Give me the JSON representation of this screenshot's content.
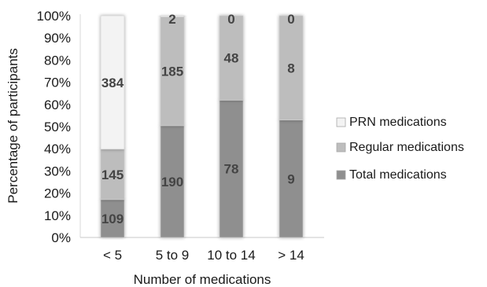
{
  "chart_data": {
    "type": "bar",
    "stacked": true,
    "normalized": true,
    "categories": [
      "< 5",
      "5 to 9",
      "10 to 14",
      "> 14"
    ],
    "series": [
      {
        "name": "Total medications",
        "values": [
          109,
          190,
          78,
          9
        ],
        "color": "#8f8f8f"
      },
      {
        "name": "Regular medications",
        "values": [
          145,
          185,
          48,
          8
        ],
        "color": "#bdbdbd"
      },
      {
        "name": "PRN medications",
        "values": [
          384,
          2,
          0,
          0
        ],
        "color": "#f3f3f3"
      }
    ],
    "xlabel": "Number of medications",
    "ylabel": "Percentage of participants",
    "y_ticks": [
      "0%",
      "10%",
      "20%",
      "30%",
      "40%",
      "50%",
      "60%",
      "70%",
      "80%",
      "90%",
      "100%"
    ],
    "ylim": [
      0,
      100
    ],
    "legend": {
      "placement": "right",
      "order": [
        "PRN medications",
        "Regular medications",
        "Total medications"
      ]
    },
    "grid": false
  }
}
